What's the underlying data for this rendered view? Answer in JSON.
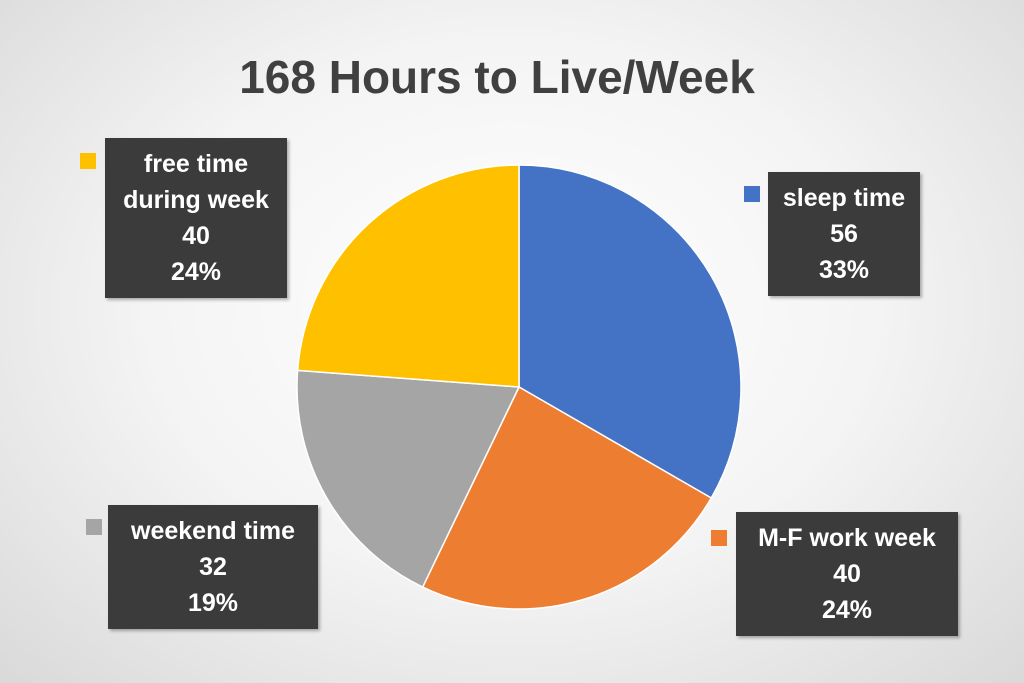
{
  "chart_data": {
    "type": "pie",
    "title": "168 Hours to Live/Week",
    "categories": [
      "sleep time",
      "M-F work week",
      "weekend time",
      "free time during week"
    ],
    "values": [
      56,
      40,
      32,
      40
    ],
    "percent_labels": [
      "33%",
      "24%",
      "19%",
      "24%"
    ],
    "colors": [
      "#4472c4",
      "#ed7d31",
      "#a5a5a5",
      "#ffc000"
    ]
  }
}
